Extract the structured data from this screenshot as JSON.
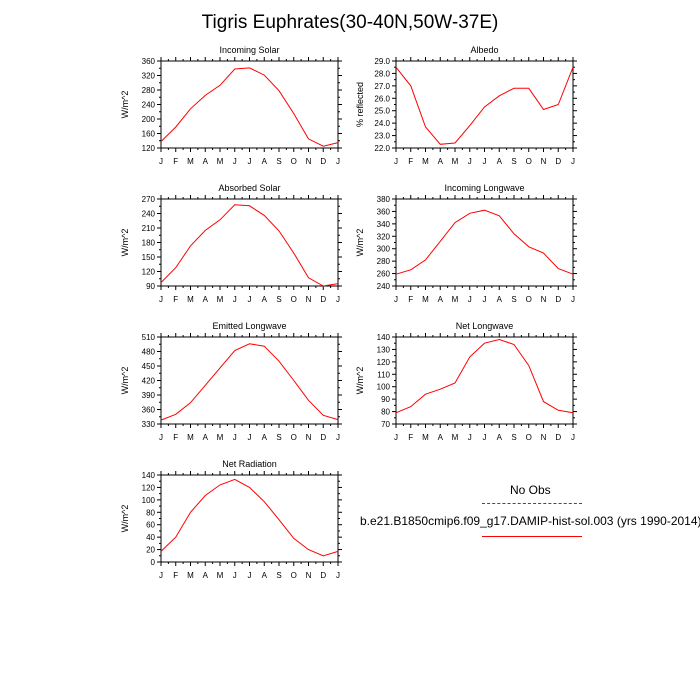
{
  "figure": {
    "title": "Tigris Euphrates(30-40N,50W-37E)"
  },
  "legend": {
    "obs_label": "No Obs",
    "model_label": "b.e21.B1850cmip6.f09_g17.DAMIP-hist-sol.003 (yrs 1990-2014)",
    "obs_color": "#3333ff",
    "model_color": "#ff0000"
  },
  "chart_data": [
    {
      "type": "line",
      "title": "Incoming Solar",
      "xlabel": "",
      "ylabel": "W/m^2",
      "categories": [
        "J",
        "F",
        "M",
        "A",
        "M",
        "J",
        "J",
        "A",
        "S",
        "O",
        "N",
        "D",
        "J"
      ],
      "ylim": [
        120,
        360
      ],
      "yticks": [
        120,
        160,
        200,
        240,
        280,
        320,
        360
      ],
      "series": [
        {
          "values": [
            138,
            178,
            228,
            265,
            293,
            338,
            341,
            321,
            278,
            215,
            145,
            125,
            135
          ],
          "color": "#ff0000"
        }
      ]
    },
    {
      "type": "line",
      "title": "Albedo",
      "xlabel": "",
      "ylabel": "% reflected",
      "categories": [
        "J",
        "F",
        "M",
        "A",
        "M",
        "J",
        "J",
        "A",
        "S",
        "O",
        "N",
        "D",
        "J"
      ],
      "ylim": [
        22.0,
        29.0
      ],
      "yticks": [
        "22.0",
        "23.0",
        "24.0",
        "25.0",
        "26.0",
        "27.0",
        "28.0",
        "29.0"
      ],
      "series": [
        {
          "values": [
            28.5,
            27.0,
            23.7,
            22.3,
            22.4,
            23.8,
            25.3,
            26.2,
            26.8,
            26.8,
            25.1,
            25.5,
            28.5
          ],
          "color": "#ff0000"
        }
      ]
    },
    {
      "type": "line",
      "title": "Absorbed Solar",
      "xlabel": "",
      "ylabel": "W/m^2",
      "categories": [
        "J",
        "F",
        "M",
        "A",
        "M",
        "J",
        "J",
        "A",
        "S",
        "O",
        "N",
        "D",
        "J"
      ],
      "ylim": [
        90,
        270
      ],
      "yticks": [
        90,
        120,
        150,
        180,
        210,
        240,
        270
      ],
      "series": [
        {
          "values": [
            97,
            128,
            173,
            205,
            227,
            258,
            256,
            236,
            204,
            158,
            107,
            90,
            95
          ],
          "color": "#ff0000"
        }
      ]
    },
    {
      "type": "line",
      "title": "Incoming Longwave",
      "xlabel": "",
      "ylabel": "W/m^2",
      "categories": [
        "J",
        "F",
        "M",
        "A",
        "M",
        "J",
        "J",
        "A",
        "S",
        "O",
        "N",
        "D",
        "J"
      ],
      "ylim": [
        240,
        380
      ],
      "yticks": [
        240,
        260,
        280,
        300,
        320,
        340,
        360,
        380
      ],
      "series": [
        {
          "values": [
            259,
            266,
            282,
            312,
            342,
            357,
            362,
            353,
            324,
            303,
            293,
            268,
            259
          ],
          "color": "#ff0000"
        }
      ]
    },
    {
      "type": "line",
      "title": "Emitted Longwave",
      "xlabel": "",
      "ylabel": "W/m^2",
      "categories": [
        "J",
        "F",
        "M",
        "A",
        "M",
        "J",
        "J",
        "A",
        "S",
        "O",
        "N",
        "D",
        "J"
      ],
      "ylim": [
        330,
        510
      ],
      "yticks": [
        330,
        360,
        390,
        420,
        450,
        480,
        510
      ],
      "series": [
        {
          "values": [
            338,
            350,
            374,
            410,
            446,
            482,
            496,
            491,
            460,
            420,
            379,
            348,
            339
          ],
          "color": "#ff0000"
        }
      ]
    },
    {
      "type": "line",
      "title": "Net Longwave",
      "xlabel": "",
      "ylabel": "W/m^2",
      "categories": [
        "J",
        "F",
        "M",
        "A",
        "M",
        "J",
        "J",
        "A",
        "S",
        "O",
        "N",
        "D",
        "J"
      ],
      "ylim": [
        70,
        140
      ],
      "yticks": [
        70,
        80,
        90,
        100,
        110,
        120,
        130,
        140
      ],
      "series": [
        {
          "values": [
            79,
            84,
            94,
            98,
            103,
            124,
            135,
            138,
            134,
            117,
            88,
            81,
            79
          ],
          "color": "#ff0000"
        }
      ]
    },
    {
      "type": "line",
      "title": "Net Radiation",
      "xlabel": "",
      "ylabel": "W/m^2",
      "categories": [
        "J",
        "F",
        "M",
        "A",
        "M",
        "J",
        "J",
        "A",
        "S",
        "O",
        "N",
        "D",
        "J"
      ],
      "ylim": [
        0,
        140
      ],
      "yticks": [
        0,
        20,
        40,
        60,
        80,
        100,
        120,
        140
      ],
      "series": [
        {
          "values": [
            17,
            40,
            80,
            107,
            124,
            133,
            120,
            97,
            68,
            38,
            20,
            10,
            17
          ],
          "color": "#ff0000"
        }
      ]
    }
  ]
}
